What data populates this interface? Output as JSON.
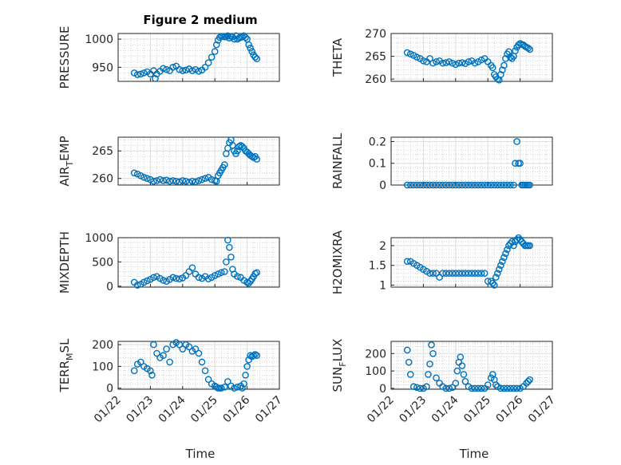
{
  "figure": {
    "title": "Figure 2 medium"
  },
  "colors": {
    "series": "#0072bd",
    "axis": "#262626",
    "grid": "#dfdfdf"
  },
  "chart_data": [
    {
      "type": "scatter",
      "ylabel": "PRESSURE",
      "title": "Figure 2 medium",
      "xlim": [
        22,
        27
      ],
      "ylim": [
        925,
        1010
      ],
      "yticks": [
        950,
        1000
      ],
      "x": [
        22.5,
        22.6,
        22.7,
        22.8,
        22.9,
        23.0,
        23.1,
        23.15,
        23.2,
        23.3,
        23.4,
        23.5,
        23.6,
        23.7,
        23.8,
        23.9,
        24.0,
        24.1,
        24.2,
        24.3,
        24.4,
        24.5,
        24.6,
        24.7,
        24.8,
        24.9,
        25.0,
        25.05,
        25.1,
        25.15,
        25.2,
        25.25,
        25.3,
        25.35,
        25.4,
        25.45,
        25.5,
        25.55,
        25.6,
        25.65,
        25.7,
        25.75,
        25.8,
        25.85,
        25.9,
        25.95,
        26.0,
        26.05,
        26.1,
        26.15,
        26.2,
        26.25,
        26.3
      ],
      "y": [
        940,
        937,
        938,
        940,
        942,
        938,
        944,
        930,
        938,
        943,
        948,
        946,
        944,
        950,
        952,
        946,
        944,
        945,
        947,
        944,
        946,
        943,
        945,
        950,
        958,
        968,
        978,
        990,
        998,
        1003,
        1005,
        1005,
        1004,
        1004,
        1006,
        1002,
        1005,
        1004,
        1000,
        1006,
        1000,
        1002,
        1003,
        1004,
        1006,
        1003,
        1000,
        990,
        984,
        978,
        972,
        968,
        965
      ]
    },
    {
      "type": "scatter",
      "ylabel": "THETA",
      "xlim": [
        22,
        27
      ],
      "ylim": [
        259.5,
        270
      ],
      "yticks": [
        260,
        265,
        270
      ],
      "x": [
        22.5,
        22.6,
        22.7,
        22.8,
        22.9,
        23.0,
        23.1,
        23.2,
        23.3,
        23.4,
        23.5,
        23.6,
        23.7,
        23.8,
        23.9,
        24.0,
        24.1,
        24.2,
        24.3,
        24.4,
        24.5,
        24.6,
        24.7,
        24.8,
        24.9,
        25.0,
        25.1,
        25.15,
        25.2,
        25.25,
        25.3,
        25.35,
        25.4,
        25.45,
        25.5,
        25.55,
        25.6,
        25.65,
        25.7,
        25.75,
        25.8,
        25.85,
        25.9,
        25.95,
        26.0,
        26.05,
        26.1,
        26.15,
        26.2,
        26.25,
        26.3
      ],
      "y": [
        265.8,
        265.5,
        265.2,
        264.8,
        264.5,
        264.0,
        263.8,
        264.5,
        263.5,
        263.8,
        264.0,
        263.5,
        263.6,
        263.8,
        263.5,
        263.2,
        263.5,
        263.6,
        263.4,
        263.8,
        264.0,
        263.5,
        263.8,
        264.2,
        264.5,
        263.8,
        263.0,
        262.5,
        261.0,
        260.5,
        260.0,
        259.8,
        261.0,
        262.0,
        263.0,
        264.5,
        265.5,
        266.0,
        264.8,
        264.5,
        265.0,
        266.2,
        267.0,
        267.5,
        267.8,
        267.6,
        267.5,
        267.2,
        267.0,
        266.8,
        266.5
      ]
    },
    {
      "type": "scatter",
      "ylabel": "AIR_T_EMP",
      "xlim": [
        22,
        27
      ],
      "ylim": [
        258.8,
        267.5
      ],
      "yticks": [
        260,
        265
      ],
      "x": [
        22.5,
        22.6,
        22.7,
        22.8,
        22.9,
        23.0,
        23.1,
        23.2,
        23.3,
        23.4,
        23.5,
        23.6,
        23.7,
        23.8,
        23.9,
        24.0,
        24.1,
        24.2,
        24.3,
        24.4,
        24.5,
        24.6,
        24.7,
        24.8,
        24.9,
        25.0,
        25.05,
        25.1,
        25.15,
        25.2,
        25.25,
        25.3,
        25.35,
        25.4,
        25.45,
        25.5,
        25.55,
        25.6,
        25.65,
        25.7,
        25.75,
        25.8,
        25.85,
        25.9,
        25.95,
        26.0,
        26.05,
        26.1,
        26.15,
        26.2,
        26.25,
        26.3
      ],
      "y": [
        261.0,
        260.8,
        260.5,
        260.2,
        260.0,
        259.8,
        259.5,
        259.6,
        259.8,
        259.6,
        259.7,
        259.5,
        259.6,
        259.5,
        259.4,
        259.6,
        259.5,
        259.3,
        259.5,
        259.4,
        259.6,
        259.8,
        260.0,
        260.2,
        259.8,
        259.6,
        259.5,
        260.5,
        261.0,
        261.5,
        262.0,
        262.5,
        264.5,
        265.5,
        266.5,
        267.0,
        266.0,
        265.0,
        264.5,
        265.0,
        265.8,
        266.0,
        265.8,
        265.5,
        265.0,
        264.8,
        264.5,
        264.2,
        264.0,
        263.8,
        264.0,
        263.5
      ]
    },
    {
      "type": "scatter",
      "ylabel": "RAINFALL",
      "xlim": [
        22,
        27
      ],
      "ylim": [
        0,
        0.22
      ],
      "yticks": [
        0,
        0.1,
        0.2
      ],
      "x": [
        22.5,
        22.6,
        22.7,
        22.8,
        22.9,
        23.0,
        23.1,
        23.2,
        23.3,
        23.4,
        23.5,
        23.6,
        23.7,
        23.8,
        23.9,
        24.0,
        24.1,
        24.2,
        24.3,
        24.4,
        24.5,
        24.6,
        24.7,
        24.8,
        24.9,
        25.0,
        25.1,
        25.2,
        25.3,
        25.4,
        25.5,
        25.6,
        25.7,
        25.8,
        25.85,
        25.9,
        25.95,
        26.0,
        26.05,
        26.1,
        26.15,
        26.2,
        26.25,
        26.3
      ],
      "y": [
        0,
        0,
        0,
        0,
        0,
        0,
        0,
        0,
        0,
        0,
        0,
        0,
        0,
        0,
        0,
        0,
        0,
        0,
        0,
        0,
        0,
        0,
        0,
        0,
        0,
        0,
        0,
        0,
        0,
        0,
        0,
        0,
        0,
        0,
        0.1,
        0.2,
        0.1,
        0.1,
        0,
        0,
        0,
        0,
        0,
        0
      ]
    },
    {
      "type": "scatter",
      "ylabel": "MIXDEPTH",
      "xlim": [
        22,
        27
      ],
      "ylim": [
        -20,
        1000
      ],
      "yticks": [
        0,
        500,
        1000
      ],
      "x": [
        22.5,
        22.6,
        22.7,
        22.8,
        22.9,
        23.0,
        23.1,
        23.2,
        23.3,
        23.4,
        23.5,
        23.6,
        23.7,
        23.8,
        23.9,
        24.0,
        24.1,
        24.2,
        24.3,
        24.4,
        24.5,
        24.6,
        24.7,
        24.8,
        24.9,
        25.0,
        25.1,
        25.2,
        25.3,
        25.35,
        25.4,
        25.45,
        25.5,
        25.55,
        25.6,
        25.7,
        25.8,
        25.9,
        26.0,
        26.05,
        26.1,
        26.15,
        26.2,
        26.25,
        26.3
      ],
      "y": [
        80,
        20,
        40,
        80,
        110,
        140,
        180,
        200,
        160,
        120,
        100,
        140,
        180,
        160,
        150,
        170,
        220,
        300,
        380,
        250,
        180,
        160,
        200,
        150,
        180,
        220,
        250,
        280,
        300,
        500,
        950,
        800,
        600,
        350,
        250,
        200,
        180,
        120,
        80,
        60,
        100,
        150,
        200,
        260,
        280
      ]
    },
    {
      "type": "scatter",
      "ylabel": "H2OMIXRA",
      "xlim": [
        22,
        27
      ],
      "ylim": [
        0.95,
        2.2
      ],
      "yticks": [
        1,
        1.5,
        2
      ],
      "x": [
        22.5,
        22.6,
        22.7,
        22.8,
        22.9,
        23.0,
        23.1,
        23.2,
        23.3,
        23.4,
        23.5,
        23.6,
        23.7,
        23.8,
        23.9,
        24.0,
        24.1,
        24.2,
        24.3,
        24.4,
        24.5,
        24.6,
        24.7,
        24.8,
        24.9,
        25.0,
        25.1,
        25.15,
        25.2,
        25.25,
        25.3,
        25.35,
        25.4,
        25.45,
        25.5,
        25.55,
        25.6,
        25.65,
        25.7,
        25.75,
        25.8,
        25.85,
        25.9,
        25.95,
        26.0,
        26.05,
        26.1,
        26.15,
        26.2,
        26.25,
        26.3
      ],
      "y": [
        1.6,
        1.6,
        1.55,
        1.5,
        1.45,
        1.4,
        1.35,
        1.3,
        1.3,
        1.3,
        1.2,
        1.3,
        1.3,
        1.3,
        1.3,
        1.3,
        1.3,
        1.3,
        1.3,
        1.3,
        1.3,
        1.3,
        1.3,
        1.3,
        1.3,
        1.1,
        1.1,
        1.05,
        1.0,
        1.2,
        1.3,
        1.4,
        1.5,
        1.6,
        1.7,
        1.8,
        1.9,
        2.0,
        2.05,
        2.1,
        2.0,
        2.1,
        2.15,
        2.2,
        2.15,
        2.1,
        2.05,
        2.0,
        2.0,
        2.0,
        2.0
      ]
    },
    {
      "type": "scatter",
      "ylabel": "TERR_M_SL",
      "xlim": [
        22,
        27
      ],
      "ylim": [
        -5,
        215
      ],
      "yticks": [
        0,
        100,
        200
      ],
      "x": [
        22.5,
        22.6,
        22.7,
        22.8,
        22.9,
        23.0,
        23.05,
        23.1,
        23.2,
        23.3,
        23.4,
        23.5,
        23.6,
        23.7,
        23.8,
        23.9,
        24.0,
        24.1,
        24.2,
        24.3,
        24.4,
        24.5,
        24.6,
        24.7,
        24.8,
        24.9,
        25.0,
        25.05,
        25.1,
        25.15,
        25.2,
        25.3,
        25.4,
        25.5,
        25.6,
        25.7,
        25.8,
        25.85,
        25.9,
        25.95,
        26.0,
        26.05,
        26.1,
        26.15,
        26.2,
        26.25,
        26.3
      ],
      "y": [
        80,
        110,
        120,
        100,
        90,
        80,
        60,
        200,
        160,
        140,
        150,
        180,
        120,
        200,
        210,
        200,
        180,
        200,
        190,
        170,
        180,
        160,
        120,
        80,
        40,
        20,
        10,
        5,
        0,
        0,
        0,
        5,
        30,
        10,
        0,
        5,
        10,
        0,
        20,
        60,
        100,
        130,
        150,
        145,
        150,
        155,
        150
      ]
    },
    {
      "type": "scatter",
      "ylabel": "SUN_F_LUX",
      "xlim": [
        22,
        27
      ],
      "ylim": [
        -5,
        270
      ],
      "yticks": [
        0,
        100,
        200
      ],
      "x": [
        22.5,
        22.55,
        22.6,
        22.7,
        22.8,
        22.9,
        23.0,
        23.1,
        23.15,
        23.2,
        23.25,
        23.3,
        23.4,
        23.5,
        23.6,
        23.7,
        23.8,
        23.9,
        24.0,
        24.05,
        24.1,
        24.15,
        24.2,
        24.25,
        24.3,
        24.4,
        24.5,
        24.6,
        24.7,
        24.8,
        24.9,
        25.0,
        25.1,
        25.15,
        25.2,
        25.25,
        25.3,
        25.4,
        25.5,
        25.6,
        25.7,
        25.8,
        25.9,
        26.0,
        26.1,
        26.2,
        26.25,
        26.3
      ],
      "y": [
        220,
        150,
        80,
        10,
        5,
        0,
        0,
        10,
        80,
        140,
        250,
        200,
        60,
        30,
        10,
        0,
        0,
        5,
        30,
        100,
        150,
        180,
        130,
        80,
        40,
        10,
        0,
        0,
        0,
        0,
        0,
        20,
        60,
        80,
        50,
        20,
        10,
        0,
        0,
        0,
        0,
        0,
        0,
        0,
        10,
        30,
        40,
        50
      ]
    }
  ],
  "xaxis": {
    "ticklabels": [
      "01/22",
      "01/23",
      "01/24",
      "01/25",
      "01/26",
      "01/27"
    ],
    "label_left": "Time",
    "label_right": "Time"
  }
}
